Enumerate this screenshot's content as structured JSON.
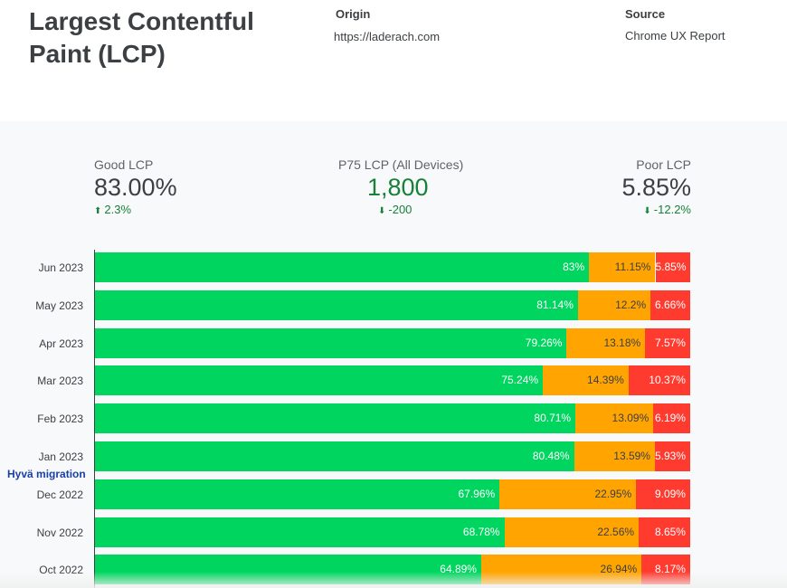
{
  "header": {
    "title": "Largest Contentful Paint (LCP)",
    "origin_label": "Origin",
    "origin_value": "https://laderach.com",
    "source_label": "Source",
    "source_value": "Chrome UX Report"
  },
  "metrics": {
    "good": {
      "label": "Good LCP",
      "value": "83.00%",
      "delta": "2.3%",
      "direction": "up",
      "color": "#188038"
    },
    "p75": {
      "label": "P75 LCP (All Devices)",
      "value": "1,800",
      "delta": "-200",
      "direction": "down",
      "color": "#188038"
    },
    "poor": {
      "label": "Poor LCP",
      "value": "5.85%",
      "delta": "-12.2%",
      "direction": "down",
      "color": "#188038"
    }
  },
  "annotation": "Hyvä migration",
  "colors": {
    "good": "#00d65f",
    "needs_improvement": "#ffa400",
    "poor": "#ff3b30"
  },
  "chart_data": {
    "type": "bar",
    "orientation": "horizontal",
    "stacked": true,
    "categories": [
      "Jun 2023",
      "May 2023",
      "Apr 2023",
      "Mar 2023",
      "Feb 2023",
      "Jan 2023",
      "Dec 2022",
      "Nov 2022",
      "Oct 2022"
    ],
    "series": [
      {
        "values": [
          83,
          81.14,
          79.26,
          75.24,
          80.71,
          80.48,
          67.96,
          68.78,
          64.89
        ],
        "labels": [
          "83%",
          "81.14%",
          "79.26%",
          "75.24%",
          "80.71%",
          "80.48%",
          "67.96%",
          "68.78%",
          "64.89%"
        ]
      },
      {
        "values": [
          11.15,
          12.2,
          13.18,
          14.39,
          13.09,
          13.59,
          22.95,
          22.56,
          26.94
        ],
        "labels": [
          "11.15%",
          "12.2%",
          "13.18%",
          "14.39%",
          "13.09%",
          "13.59%",
          "22.95%",
          "22.56%",
          "26.94%"
        ]
      },
      {
        "values": [
          5.85,
          6.66,
          7.57,
          10.37,
          6.19,
          5.93,
          9.09,
          8.65,
          8.17
        ],
        "labels": [
          "5.85%",
          "6.66%",
          "7.57%",
          "10.37%",
          "6.19%",
          "5.93%",
          "9.09%",
          "8.65%",
          "8.17%"
        ]
      }
    ],
    "xlim": [
      0,
      100
    ],
    "title": "",
    "xlabel": "",
    "ylabel": ""
  }
}
